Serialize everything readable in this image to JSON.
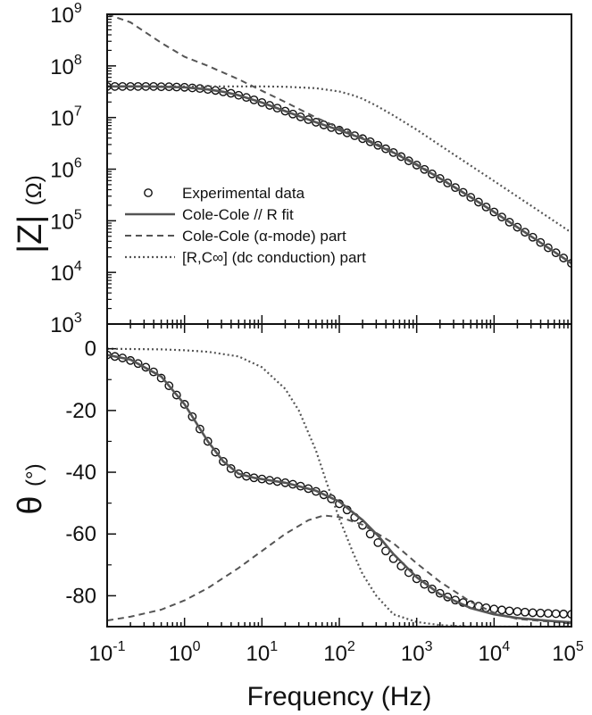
{
  "chart_data": [
    {
      "type": "line",
      "panel": "top",
      "ylabel": "|Z| (Ω)",
      "ylabel_main": "|Z|",
      "ylabel_unit": "(Ω)",
      "xscale": "log",
      "yscale": "log",
      "xlim": [
        0.1,
        100000
      ],
      "ylim": [
        1000,
        1000000000
      ],
      "yticks": [
        {
          "base": "10",
          "exp": "3"
        },
        {
          "base": "10",
          "exp": "4"
        },
        {
          "base": "10",
          "exp": "5"
        },
        {
          "base": "10",
          "exp": "6"
        },
        {
          "base": "10",
          "exp": "7"
        },
        {
          "base": "10",
          "exp": "8"
        },
        {
          "base": "10",
          "exp": "9"
        }
      ],
      "legend_position": "lower-left",
      "legend": [
        {
          "label": "Experimental data",
          "style": "circles"
        },
        {
          "label": "Cole-Cole // R fit",
          "style": "solid"
        },
        {
          "label": "Cole-Cole (α-mode) part",
          "style": "dashed"
        },
        {
          "label": "[R,C∞] (dc conduction) part",
          "style": "dotted"
        }
      ],
      "series": [
        {
          "name": "Experimental data",
          "style": "circles",
          "x": [
            0.1,
            0.126,
            0.158,
            0.2,
            0.251,
            0.316,
            0.398,
            0.5,
            0.63,
            0.79,
            1,
            1.26,
            1.58,
            2,
            2.51,
            3.16,
            3.98,
            5,
            6.3,
            7.9,
            10,
            12.6,
            15.8,
            20,
            25.1,
            31.6,
            39.8,
            50,
            63,
            79,
            100,
            126,
            158,
            200,
            251,
            316,
            398,
            500,
            630,
            790,
            1000,
            1260,
            1580,
            2000,
            2510,
            3160,
            3980,
            5000,
            6300,
            7900,
            10000,
            12600,
            15800,
            20000,
            25100,
            31600,
            39800,
            50000,
            63000,
            79000,
            100000
          ],
          "values": [
            40000000,
            40000000,
            40000000,
            40000000,
            40000000,
            40000000,
            40000000,
            39500000,
            39500000,
            39000000,
            38500000,
            37500000,
            36500000,
            35000000,
            33500000,
            31500000,
            29500000,
            27000000,
            24500000,
            22000000,
            19500000,
            17200000,
            15200000,
            13300000,
            11700000,
            10300000,
            9100000,
            8100000,
            7200000,
            6400000,
            5700000,
            5050000,
            4450000,
            3900000,
            3400000,
            2900000,
            2480000,
            2100000,
            1750000,
            1450000,
            1200000,
            990000,
            810000,
            660000,
            540000,
            440000,
            355000,
            285000,
            230000,
            185000,
            148000,
            118000,
            94000,
            75000,
            60000,
            48000,
            38000,
            30000,
            24000,
            19000,
            15000
          ]
        },
        {
          "name": "Cole-Cole // R fit",
          "style": "solid",
          "x": [
            0.1,
            0.316,
            1,
            2,
            3.16,
            5,
            10,
            20,
            50,
            100,
            200,
            500,
            1000,
            2000,
            5000,
            10000,
            20000,
            50000,
            100000
          ],
          "values": [
            40000000,
            40000000,
            38500000,
            35000000,
            31500000,
            27000000,
            19500000,
            13300000,
            8100000,
            5700000,
            3900000,
            2100000,
            1200000,
            660000,
            285000,
            148000,
            75000,
            30000,
            15000
          ]
        },
        {
          "name": "Cole-Cole (α-mode) part",
          "style": "dashed",
          "x": [
            0.1,
            0.2,
            0.5,
            1,
            2,
            5,
            10,
            20,
            50,
            100,
            200,
            500,
            1000,
            2000,
            5000,
            10000,
            20000,
            50000,
            100000
          ],
          "values": [
            1000000000,
            700000000,
            280000000,
            150000000,
            100000000,
            55000000,
            33000000,
            20000000,
            10000000,
            6300000,
            4100000,
            2200000,
            1250000,
            680000,
            290000,
            150000,
            76000,
            30000,
            15000
          ]
        },
        {
          "name": "[R,C∞] (dc conduction) part",
          "style": "dotted",
          "x": [
            0.1,
            1,
            5,
            10,
            20,
            50,
            100,
            150,
            200,
            300,
            500,
            1000,
            2000,
            5000,
            10000,
            20000,
            50000,
            100000
          ],
          "values": [
            40000000,
            40000000,
            40000000,
            40000000,
            39500000,
            37000000,
            32000000,
            27000000,
            23000000,
            17000000,
            11000000,
            5800000,
            2900000,
            1170000,
            590000,
            295000,
            118000,
            59000
          ]
        }
      ]
    },
    {
      "type": "line",
      "panel": "bottom",
      "xlabel": "Frequency (Hz)",
      "ylabel": "θ (°)",
      "ylabel_main": "θ",
      "ylabel_unit": "(°)",
      "xscale": "log",
      "xlim": [
        0.1,
        100000
      ],
      "ylim": [
        -90,
        8
      ],
      "yticks": [
        "0",
        "-20",
        "-40",
        "-60",
        "-80"
      ],
      "xticks": [
        {
          "base": "10",
          "exp": "-1"
        },
        {
          "base": "10",
          "exp": "0"
        },
        {
          "base": "10",
          "exp": "1"
        },
        {
          "base": "10",
          "exp": "2"
        },
        {
          "base": "10",
          "exp": "3"
        },
        {
          "base": "10",
          "exp": "4"
        },
        {
          "base": "10",
          "exp": "5"
        }
      ],
      "series": [
        {
          "name": "Experimental data",
          "style": "circles",
          "x": [
            0.1,
            0.126,
            0.158,
            0.2,
            0.251,
            0.316,
            0.398,
            0.5,
            0.63,
            0.79,
            1,
            1.26,
            1.58,
            2,
            2.51,
            3.16,
            3.98,
            5,
            6.3,
            7.9,
            10,
            12.6,
            15.8,
            20,
            25.1,
            31.6,
            39.8,
            50,
            63,
            79,
            100,
            126,
            158,
            200,
            251,
            316,
            398,
            500,
            630,
            790,
            1000,
            1260,
            1580,
            2000,
            2510,
            3160,
            3980,
            5000,
            6300,
            7900,
            10000,
            12600,
            15800,
            20000,
            25100,
            31600,
            39800,
            50000,
            63000,
            79000,
            100000
          ],
          "values": [
            -2,
            -2.5,
            -3,
            -3.8,
            -4.8,
            -6,
            -7.5,
            -9.5,
            -12,
            -15,
            -18,
            -22,
            -26,
            -30,
            -33.5,
            -36.5,
            -38.8,
            -40.5,
            -41.3,
            -41.8,
            -42.2,
            -42.6,
            -43,
            -43.4,
            -43.9,
            -44.5,
            -45.3,
            -46.2,
            -47.3,
            -48.6,
            -50.2,
            -52.2,
            -54.6,
            -57.2,
            -60,
            -62.8,
            -65.5,
            -68,
            -70.4,
            -72.5,
            -74.5,
            -76.3,
            -77.8,
            -79.2,
            -80.4,
            -81.4,
            -82.2,
            -82.9,
            -83.4,
            -83.9,
            -84.3,
            -84.6,
            -84.9,
            -85.1,
            -85.3,
            -85.5,
            -85.6,
            -85.7,
            -85.8,
            -85.9,
            -86
          ]
        },
        {
          "name": "Cole-Cole // R fit",
          "style": "solid",
          "x": [
            0.1,
            0.2,
            0.5,
            1,
            2,
            3.16,
            5,
            7.9,
            10,
            20,
            50,
            100,
            200,
            316,
            500,
            1000,
            2000,
            5000,
            10000,
            20000,
            50000,
            100000
          ],
          "values": [
            -2,
            -3.5,
            -9,
            -18,
            -30,
            -36.5,
            -40.5,
            -41.8,
            -42.2,
            -43.4,
            -46,
            -49.5,
            -55.5,
            -60.5,
            -66.5,
            -74,
            -79.5,
            -84,
            -86,
            -87.2,
            -88.1,
            -88.6
          ]
        },
        {
          "name": "Cole-Cole (α-mode) part",
          "style": "dashed",
          "x": [
            0.1,
            0.2,
            0.5,
            1,
            2,
            5,
            10,
            20,
            40,
            63,
            100,
            200,
            500,
            1000,
            2000,
            5000,
            10000,
            20000,
            100000
          ],
          "values": [
            -88,
            -86.8,
            -84.5,
            -81.5,
            -77.5,
            -71,
            -65.5,
            -60,
            -55.5,
            -54,
            -54.5,
            -57,
            -63,
            -69.5,
            -75.5,
            -82,
            -85.5,
            -87.5,
            -89
          ]
        },
        {
          "name": "[R,C∞] (dc conduction) part",
          "style": "dotted",
          "x": [
            0.1,
            0.5,
            1,
            2,
            5,
            10,
            20,
            30,
            50,
            70,
            100,
            150,
            200,
            300,
            500,
            1000,
            2000,
            5000,
            10000,
            100000
          ],
          "values": [
            0,
            -0.2,
            -0.5,
            -1,
            -2.5,
            -6,
            -13,
            -20,
            -33,
            -44,
            -55,
            -66,
            -73,
            -80,
            -86,
            -88.5,
            -89.5,
            -90,
            -90,
            -90
          ]
        }
      ]
    }
  ]
}
